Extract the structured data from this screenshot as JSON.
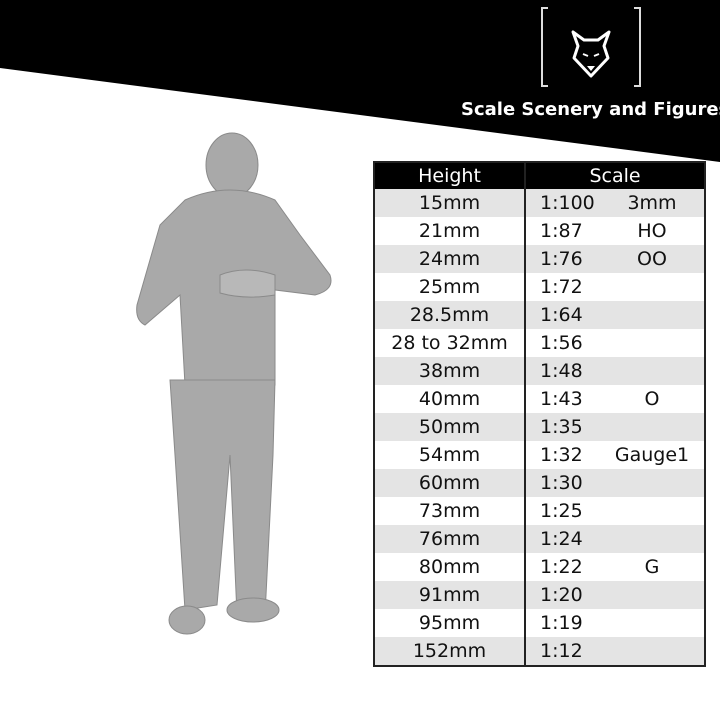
{
  "brand": {
    "name": "Scale Scenery and Figures",
    "logo_icon": "wolf-head-icon"
  },
  "table": {
    "headers": [
      "Height",
      "Scale"
    ],
    "rows": [
      {
        "height": "15mm",
        "scale": "1:100",
        "gauge": "3mm"
      },
      {
        "height": "21mm",
        "scale": "1:87",
        "gauge": "HO"
      },
      {
        "height": "24mm",
        "scale": "1:76",
        "gauge": "OO"
      },
      {
        "height": "25mm",
        "scale": "1:72",
        "gauge": ""
      },
      {
        "height": "28.5mm",
        "scale": "1:64",
        "gauge": ""
      },
      {
        "height": "28 to 32mm",
        "scale": "1:56",
        "gauge": ""
      },
      {
        "height": "38mm",
        "scale": "1:48",
        "gauge": ""
      },
      {
        "height": "40mm",
        "scale": "1:43",
        "gauge": "O"
      },
      {
        "height": "50mm",
        "scale": "1:35",
        "gauge": ""
      },
      {
        "height": "54mm",
        "scale": "1:32",
        "gauge": "Gauge1"
      },
      {
        "height": "60mm",
        "scale": "1:30",
        "gauge": ""
      },
      {
        "height": "73mm",
        "scale": "1:25",
        "gauge": ""
      },
      {
        "height": "76mm",
        "scale": "1:24",
        "gauge": ""
      },
      {
        "height": "80mm",
        "scale": "1:22",
        "gauge": "G"
      },
      {
        "height": "91mm",
        "scale": "1:20",
        "gauge": ""
      },
      {
        "height": "95mm",
        "scale": "1:19",
        "gauge": ""
      },
      {
        "height": "152mm",
        "scale": "1:12",
        "gauge": ""
      }
    ]
  },
  "colors": {
    "banner": "#000000",
    "row_alt": "#e4e4e4",
    "figure": "#a9a9a9"
  }
}
